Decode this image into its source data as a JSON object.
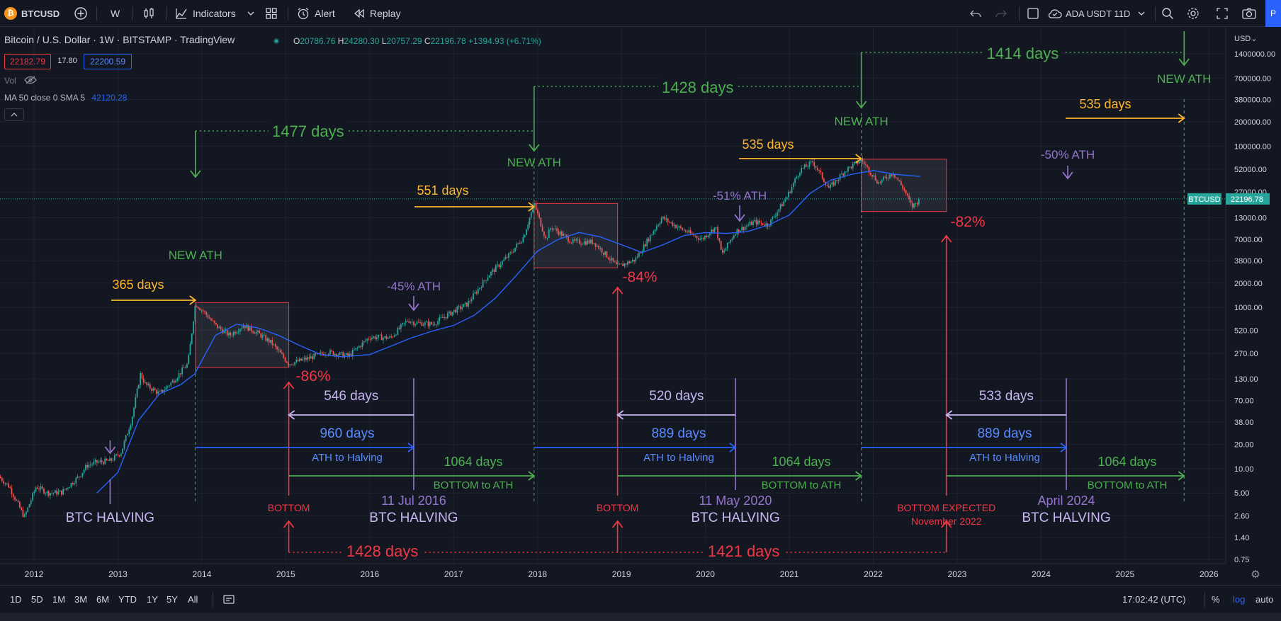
{
  "toolbar": {
    "symbol": "BTCUSD",
    "logo_glyph": "₿",
    "interval": "W",
    "indicators_label": "Indicators",
    "alert_label": "Alert",
    "replay_label": "Replay",
    "layout_name": "ADA USDT 11D",
    "publish_label": "P"
  },
  "legend": {
    "title": "Bitcoin / U.S. Dollar · 1W · BITSTAMP · TradingView",
    "ohlc": {
      "o_label": "O",
      "o": "20786.76",
      "h_label": "H",
      "h": "24280.30",
      "l_label": "L",
      "l": "20757.29",
      "c_label": "C",
      "c": "22196.78",
      "change": "+1394.93 (+6.71%)"
    },
    "bid": "22182.79",
    "spread": "17.80",
    "ask": "22200.59",
    "vol_label": "Vol",
    "ma_label": "MA 50 close 0 SMA 5",
    "ma_value": "42120.28"
  },
  "colors": {
    "background": "#131722",
    "grid": "#1f2330",
    "candle_up": "#26a69a",
    "candle_down": "#ef5350",
    "ma": "#2962ff",
    "ath_green": "#4caf50",
    "days_yellow": "#ffb62e",
    "halving_purple": "#9575cd",
    "bottom_red": "#f23645",
    "blue": "#2962ff"
  },
  "chart_data": {
    "type": "line",
    "symbol": "BTCUSD",
    "timeframe": "1W",
    "yscale": "log",
    "ylim": [
      0.75,
      1400000
    ],
    "xlim": [
      "2011-08-01",
      "2026-03-01"
    ],
    "x_ticks": [
      "2012",
      "2013",
      "2014",
      "2015",
      "2016",
      "2017",
      "2018",
      "2019",
      "2020",
      "2021",
      "2022",
      "2023",
      "2024",
      "2025",
      "2026"
    ],
    "y_ticks": [
      "1400000.00",
      "700000.00",
      "380000.00",
      "200000.00",
      "100000.00",
      "52000.00",
      "27000.00",
      "13000.00",
      "7000.00",
      "3800.00",
      "2000.00",
      "1000.00",
      "520.00",
      "270.00",
      "130.00",
      "70.00",
      "38.00",
      "20.00",
      "10.00",
      "5.00",
      "2.60",
      "1.40",
      "0.75"
    ],
    "y_axis_currency": "USD",
    "current_price": {
      "label": "BTCUSD",
      "value": "22196.78",
      "price": 22196.78
    },
    "price_path": [
      [
        "2011-08-01",
        8
      ],
      [
        "2011-09-15",
        6
      ],
      [
        "2011-11-20",
        2.5
      ],
      [
        "2012-01-10",
        6
      ],
      [
        "2012-03-01",
        5
      ],
      [
        "2012-05-01",
        5.1
      ],
      [
        "2012-07-15",
        8
      ],
      [
        "2012-08-20",
        11
      ],
      [
        "2012-10-01",
        12
      ],
      [
        "2012-11-28",
        12.5
      ],
      [
        "2013-01-15",
        16
      ],
      [
        "2013-03-01",
        40
      ],
      [
        "2013-04-09",
        150
      ],
      [
        "2013-05-01",
        110
      ],
      [
        "2013-07-01",
        85
      ],
      [
        "2013-09-01",
        125
      ],
      [
        "2013-11-01",
        200
      ],
      [
        "2013-12-04",
        1120
      ],
      [
        "2014-01-15",
        850
      ],
      [
        "2014-03-01",
        600
      ],
      [
        "2014-05-01",
        450
      ],
      [
        "2014-07-01",
        600
      ],
      [
        "2014-09-01",
        480
      ],
      [
        "2014-11-01",
        360
      ],
      [
        "2015-01-14",
        200
      ],
      [
        "2015-04-01",
        230
      ],
      [
        "2015-07-01",
        280
      ],
      [
        "2015-10-01",
        250
      ],
      [
        "2016-01-01",
        430
      ],
      [
        "2016-04-01",
        420
      ],
      [
        "2016-06-15",
        700
      ],
      [
        "2016-07-11",
        650
      ],
      [
        "2016-10-01",
        620
      ],
      [
        "2017-01-01",
        900
      ],
      [
        "2017-03-01",
        1100
      ],
      [
        "2017-06-01",
        2500
      ],
      [
        "2017-09-01",
        4500
      ],
      [
        "2017-11-01",
        7500
      ],
      [
        "2017-12-17",
        19500
      ],
      [
        "2018-02-06",
        7000
      ],
      [
        "2018-03-01",
        10000
      ],
      [
        "2018-06-01",
        6500
      ],
      [
        "2018-09-01",
        6500
      ],
      [
        "2018-12-15",
        3200
      ],
      [
        "2019-03-01",
        3900
      ],
      [
        "2019-06-26",
        13000
      ],
      [
        "2019-09-01",
        10000
      ],
      [
        "2019-12-15",
        7000
      ],
      [
        "2020-02-15",
        10000
      ],
      [
        "2020-03-13",
        4500
      ],
      [
        "2020-05-11",
        8700
      ],
      [
        "2020-08-01",
        11500
      ],
      [
        "2020-10-01",
        10600
      ],
      [
        "2020-12-20",
        23000
      ],
      [
        "2021-02-15",
        50000
      ],
      [
        "2021-04-14",
        64000
      ],
      [
        "2021-06-22",
        30000
      ],
      [
        "2021-09-01",
        50000
      ],
      [
        "2021-11-10",
        68000
      ],
      [
        "2022-01-24",
        35000
      ],
      [
        "2022-03-28",
        47000
      ],
      [
        "2022-05-15",
        29000
      ],
      [
        "2022-06-18",
        17600
      ],
      [
        "2022-07-25",
        22196
      ]
    ],
    "ma_path": [
      [
        "2012-10-01",
        5
      ],
      [
        "2013-01-01",
        9
      ],
      [
        "2013-04-01",
        40
      ],
      [
        "2013-07-01",
        85
      ],
      [
        "2013-10-01",
        110
      ],
      [
        "2013-12-01",
        150
      ],
      [
        "2014-03-01",
        450
      ],
      [
        "2014-06-01",
        620
      ],
      [
        "2014-09-01",
        560
      ],
      [
        "2014-12-01",
        450
      ],
      [
        "2015-03-01",
        340
      ],
      [
        "2015-06-01",
        260
      ],
      [
        "2015-09-01",
        245
      ],
      [
        "2016-01-01",
        260
      ],
      [
        "2016-04-01",
        330
      ],
      [
        "2016-07-01",
        420
      ],
      [
        "2016-10-01",
        510
      ],
      [
        "2017-01-01",
        600
      ],
      [
        "2017-04-01",
        800
      ],
      [
        "2017-07-01",
        1300
      ],
      [
        "2017-10-01",
        2500
      ],
      [
        "2018-01-01",
        5000
      ],
      [
        "2018-04-01",
        7000
      ],
      [
        "2018-07-01",
        8500
      ],
      [
        "2018-10-01",
        7500
      ],
      [
        "2019-01-01",
        6000
      ],
      [
        "2019-04-01",
        4800
      ],
      [
        "2019-07-01",
        6000
      ],
      [
        "2019-10-01",
        7800
      ],
      [
        "2020-01-01",
        8500
      ],
      [
        "2020-04-01",
        8300
      ],
      [
        "2020-07-01",
        8700
      ],
      [
        "2020-10-01",
        10500
      ],
      [
        "2021-01-01",
        14000
      ],
      [
        "2021-04-01",
        26000
      ],
      [
        "2021-07-01",
        38000
      ],
      [
        "2021-10-01",
        45000
      ],
      [
        "2022-01-01",
        50000
      ],
      [
        "2022-04-01",
        45000
      ],
      [
        "2022-07-25",
        42120
      ]
    ],
    "ath_boxes": [
      {
        "from": "2013-12-04",
        "to": "2015-01-14",
        "high": 1150,
        "low": 180
      },
      {
        "from": "2017-12-17",
        "to": "2018-12-15",
        "high": 19500,
        "low": 3100
      },
      {
        "from": "2021-11-10",
        "to": "2022-11-15",
        "high": 69000,
        "low": 15500
      }
    ],
    "annotations": {
      "new_ath_label": "NEW ATH",
      "halving_label": "BTC HALVING",
      "bottom_label": "BOTTOM",
      "bottom_to_ath_label": "BOTTOM to ATH",
      "ath_to_halving_label": "ATH to Halving",
      "bottom_expected_label": "BOTTOM EXPECTED",
      "bottom_expected_date": "November 2022",
      "halving_dates": [
        "",
        "11 Jul 2016",
        "11 May 2020",
        "April 2024"
      ],
      "drawdowns": [
        "-86%",
        "-84%",
        "-82%"
      ],
      "halving_drops": [
        "-45% ATH",
        "-51% ATH",
        "-50% ATH"
      ],
      "ath_intervals": [
        "1477 days",
        "1428 days",
        "1414 days"
      ],
      "halving_to_ath": [
        "365 days",
        "551 days",
        "535 days",
        "535 days"
      ],
      "bottom_to_halving": [
        "546 days",
        "520 days",
        "533 days"
      ],
      "ath_to_halving": [
        "960 days",
        "889 days",
        "889 days"
      ],
      "bottom_to_ath": [
        "1064 days",
        "1064 days",
        "1064 days"
      ],
      "bottom_intervals": [
        "1428 days",
        "1421 days"
      ]
    }
  },
  "bottombar": {
    "ranges": [
      "1D",
      "5D",
      "1M",
      "3M",
      "6M",
      "YTD",
      "1Y",
      "5Y",
      "All"
    ],
    "time": "17:02:42 (UTC)",
    "percent": "%",
    "log": "log",
    "auto": "auto"
  }
}
